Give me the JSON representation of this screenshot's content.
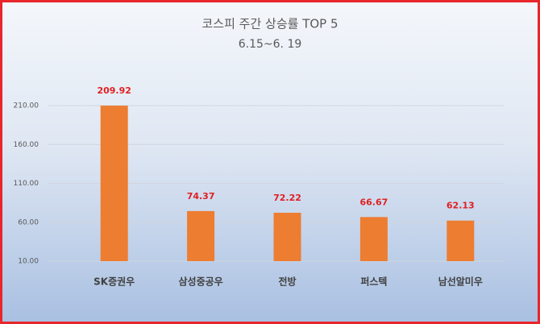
{
  "chart_data": {
    "type": "bar",
    "title": "코스피 주간 상승률 TOP 5",
    "subtitle": "6.15~6. 19",
    "categories": [
      "SK증권우",
      "삼성중공우",
      "전방",
      "퍼스텍",
      "남선알미우"
    ],
    "values": [
      209.92,
      74.37,
      72.22,
      66.67,
      62.13
    ],
    "color": "#ed7d31",
    "value_label_color": "#e02020",
    "ylim": [
      10,
      210
    ],
    "yticks": [
      {
        "value": 10,
        "label": "10.00"
      },
      {
        "value": 60,
        "label": "60.00"
      },
      {
        "value": 110,
        "label": "110.00"
      },
      {
        "value": 160,
        "label": "160.00"
      },
      {
        "value": 210,
        "label": "210.00"
      }
    ],
    "grid": true
  }
}
